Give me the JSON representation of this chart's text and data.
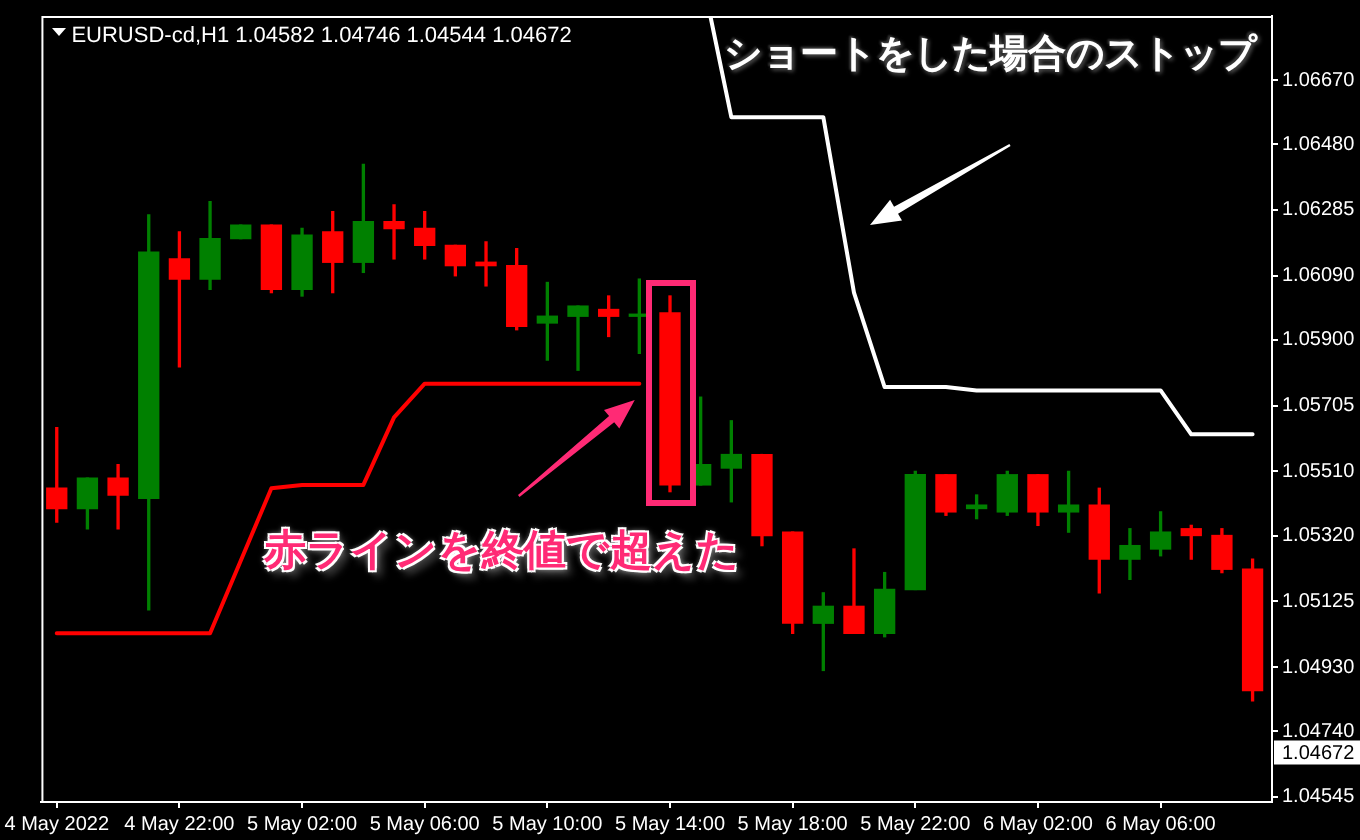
{
  "chart_data": {
    "type": "candlestick",
    "title": "EURUSD-cd,H1 1.04582 1.04746 1.04544 1.04672",
    "x": [
      "2022-05-04T18:00",
      "2022-05-04T19:00",
      "2022-05-04T20:00",
      "2022-05-04T21:00",
      "2022-05-04T22:00",
      "2022-05-04T23:00",
      "2022-05-05T00:00",
      "2022-05-05T01:00",
      "2022-05-05T02:00",
      "2022-05-05T03:00",
      "2022-05-05T04:00",
      "2022-05-05T05:00",
      "2022-05-05T06:00",
      "2022-05-05T07:00",
      "2022-05-05T08:00",
      "2022-05-05T09:00",
      "2022-05-05T10:00",
      "2022-05-05T11:00",
      "2022-05-05T12:00",
      "2022-05-05T13:00",
      "2022-05-05T14:00",
      "2022-05-05T15:00",
      "2022-05-05T16:00",
      "2022-05-05T17:00",
      "2022-05-05T18:00",
      "2022-05-05T19:00",
      "2022-05-05T20:00",
      "2022-05-05T21:00",
      "2022-05-05T22:00",
      "2022-05-05T23:00",
      "2022-05-06T00:00",
      "2022-05-06T01:00",
      "2022-05-06T02:00",
      "2022-05-06T03:00",
      "2022-05-06T04:00",
      "2022-05-06T05:00",
      "2022-05-06T06:00",
      "2022-05-06T07:00",
      "2022-05-06T08:00",
      "2022-05-06T09:00"
    ],
    "ohlc": [
      [
        1.0546,
        1.0564,
        1.0536,
        1.054
      ],
      [
        1.054,
        1.0549,
        1.0534,
        1.0549
      ],
      [
        1.0549,
        1.0553,
        1.0534,
        1.0544
      ],
      [
        1.0543,
        1.0627,
        1.051,
        1.0616
      ],
      [
        1.0614,
        1.0622,
        1.0582,
        1.0608
      ],
      [
        1.0608,
        1.0631,
        1.0605,
        1.062
      ],
      [
        1.062,
        1.0624,
        1.062,
        1.0624
      ],
      [
        1.0624,
        1.0624,
        1.0604,
        1.0605
      ],
      [
        1.0605,
        1.0623,
        1.0603,
        1.0621
      ],
      [
        1.0622,
        1.0628,
        1.0604,
        1.0613
      ],
      [
        1.0613,
        1.0642,
        1.061,
        1.0625
      ],
      [
        1.0625,
        1.063,
        1.0614,
        1.0623
      ],
      [
        1.0623,
        1.0628,
        1.0614,
        1.0618
      ],
      [
        1.0618,
        1.0618,
        1.0609,
        1.0612
      ],
      [
        1.0613,
        1.0619,
        1.0606,
        1.0612
      ],
      [
        1.0612,
        1.0617,
        1.0593,
        1.0594
      ],
      [
        1.0595,
        1.0607,
        1.0584,
        1.0597
      ],
      [
        1.0597,
        1.06,
        1.0581,
        1.06
      ],
      [
        1.0599,
        1.0603,
        1.0591,
        1.0597
      ],
      [
        1.0597,
        1.0608,
        1.0586,
        1.0597
      ],
      [
        1.0598,
        1.0603,
        1.0545,
        1.0547
      ],
      [
        1.0547,
        1.0573,
        1.0547,
        1.0553
      ],
      [
        1.0552,
        1.0566,
        1.0542,
        1.0556
      ],
      [
        1.0556,
        1.0556,
        1.0529,
        1.0532
      ],
      [
        1.0533,
        1.0533,
        1.0503,
        1.0506
      ],
      [
        1.0506,
        1.0515,
        1.0492,
        1.0511
      ],
      [
        1.0511,
        1.0528,
        1.0503,
        1.0503
      ],
      [
        1.0503,
        1.0521,
        1.0502,
        1.0516
      ],
      [
        1.0516,
        1.0551,
        1.0516,
        1.055
      ],
      [
        1.055,
        1.055,
        1.0538,
        1.0539
      ],
      [
        1.054,
        1.0544,
        1.0537,
        1.0541
      ],
      [
        1.0539,
        1.0551,
        1.0538,
        1.055
      ],
      [
        1.055,
        1.055,
        1.0535,
        1.0539
      ],
      [
        1.0539,
        1.0551,
        1.0533,
        1.0541
      ],
      [
        1.0541,
        1.0546,
        1.0515,
        1.0525
      ],
      [
        1.0525,
        1.0534,
        1.0519,
        1.0529
      ],
      [
        1.0528,
        1.0539,
        1.0526,
        1.0533
      ],
      [
        1.0534,
        1.0535,
        1.0525,
        1.0532
      ],
      [
        1.0532,
        1.0534,
        1.0521,
        1.0522
      ],
      [
        1.0522,
        1.0525,
        1.0483,
        1.0486
      ]
    ],
    "colors": [
      "#ff0000",
      "#008000",
      "#ff0000",
      "#008000",
      "#ff0000",
      "#008000",
      "#008000",
      "#ff0000",
      "#008000",
      "#ff0000",
      "#008000",
      "#ff0000",
      "#ff0000",
      "#ff0000",
      "#ff0000",
      "#ff0000",
      "#008000",
      "#008000",
      "#ff0000",
      "#008000",
      "#ff0000",
      "#008000",
      "#008000",
      "#ff0000",
      "#ff0000",
      "#008000",
      "#ff0000",
      "#008000",
      "#008000",
      "#ff0000",
      "#008000",
      "#008000",
      "#ff0000",
      "#008000",
      "#ff0000",
      "#008000",
      "#008000",
      "#ff0000",
      "#ff0000",
      "#ff0000"
    ],
    "series": [
      {
        "type": "line",
        "color": "#ff0000",
        "x": [
          "2022-05-04T18:00",
          "2022-05-04T23:00",
          "2022-05-05T01:00",
          "2022-05-05T02:00",
          "2022-05-05T04:00",
          "2022-05-05T05:00",
          "2022-05-05T06:00",
          "2022-05-05T13:00"
        ],
        "values": [
          1.0503,
          1.0503,
          1.0546,
          1.0547,
          1.0547,
          1.0567,
          1.0577,
          1.0577
        ]
      },
      {
        "type": "line",
        "color": "#ffffff",
        "x": [
          "2022-05-05T15:19",
          "2022-05-05T16:00",
          "2022-05-05T19:00",
          "2022-05-05T20:00",
          "2022-05-05T21:00",
          "2022-05-05T23:00",
          "2022-05-06T00:00",
          "2022-05-06T06:00",
          "2022-05-06T07:00",
          "2022-05-06T09:00"
        ],
        "values": [
          1.0686,
          1.0656,
          1.0656,
          1.0604,
          1.0576,
          1.0576,
          1.0575,
          1.0575,
          1.0562,
          1.0562
        ]
      }
    ],
    "xlim": [
      "2022-05-04T17:30",
      "2022-05-06T09:38"
    ],
    "xticks": [
      {
        "value": "2022-05-04T18:00",
        "label": "4 May 2022"
      },
      {
        "value": "2022-05-04T22:00",
        "label": "4 May 22:00"
      },
      {
        "value": "2022-05-05T02:00",
        "label": "5 May 02:00"
      },
      {
        "value": "2022-05-05T06:00",
        "label": "5 May 06:00"
      },
      {
        "value": "2022-05-05T10:00",
        "label": "5 May 10:00"
      },
      {
        "value": "2022-05-05T14:00",
        "label": "5 May 14:00"
      },
      {
        "value": "2022-05-05T18:00",
        "label": "5 May 18:00"
      },
      {
        "value": "2022-05-05T22:00",
        "label": "5 May 22:00"
      },
      {
        "value": "2022-05-06T02:00",
        "label": "6 May 02:00"
      },
      {
        "value": "2022-05-06T06:00",
        "label": "6 May 06:00"
      }
    ],
    "ylim": [
      1.0453,
      1.0686
    ],
    "yticks": [
      {
        "value": 1.0667,
        "label": "1.06670"
      },
      {
        "value": 1.0648,
        "label": "1.06480"
      },
      1.06285,
      {
        "value": 1.0609,
        "label": "1.06090"
      },
      {
        "value": 1.059,
        "label": "1.05900"
      },
      1.05705,
      {
        "value": 1.0551,
        "label": "1.05510"
      },
      {
        "value": 1.0532,
        "label": "1.05320"
      },
      1.05125,
      {
        "value": 1.0493,
        "label": "1.04930"
      },
      {
        "value": 1.0474,
        "label": "1.04740"
      },
      1.04545
    ],
    "annotations": [
      "ショートをした場合のストップ",
      "赤ラインを終値で超えた",
      "1.04672"
    ]
  }
}
